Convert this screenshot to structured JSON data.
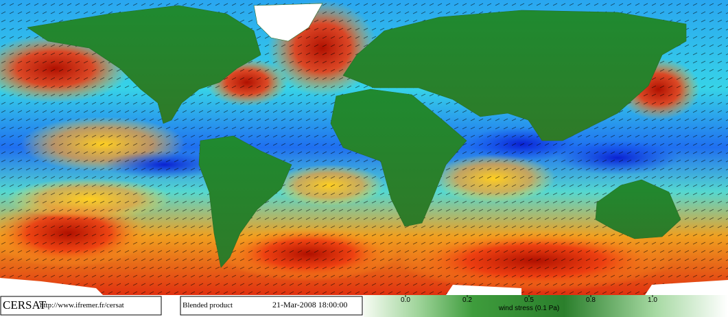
{
  "footer": {
    "logo": "CERSAT",
    "url": "http://www.ifremer.fr/cersat",
    "product": "Blended product",
    "datetime": "21-Mar-2008 18:00:00"
  },
  "colorbar": {
    "label": "wind stress (0.1 Pa)",
    "ticks": [
      {
        "value": 0,
        "label": "0.0"
      },
      0.2,
      0.5,
      0.8,
      {
        "value": 1,
        "label": "1.0"
      }
    ]
  }
}
